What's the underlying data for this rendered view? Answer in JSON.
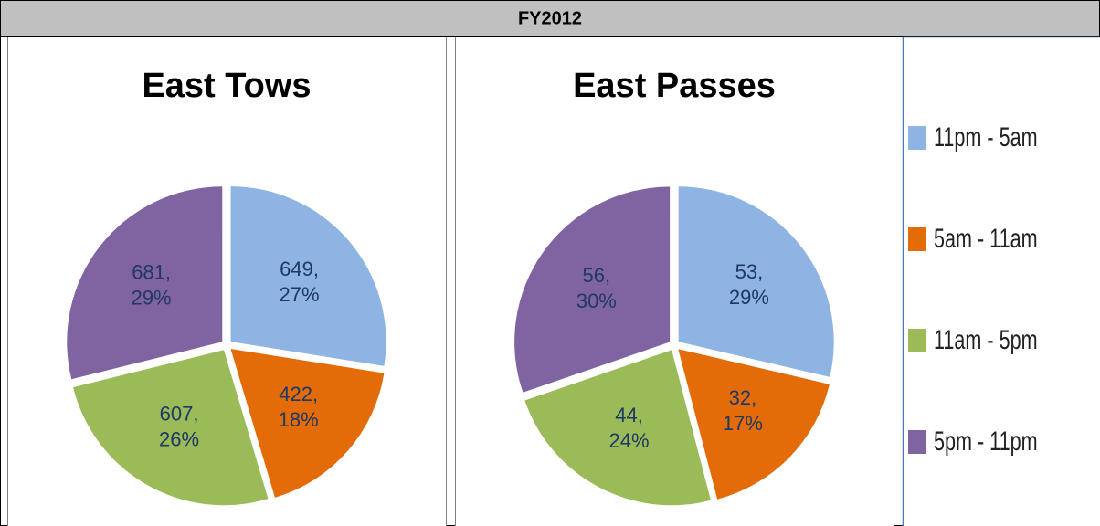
{
  "title": "FY2012",
  "legend": {
    "entries": [
      {
        "name": "11pm - 5am",
        "color": "#8eb4e3"
      },
      {
        "name": "5am - 11am",
        "color": "#e36c09"
      },
      {
        "name": "11am - 5pm",
        "color": "#9bbb59"
      },
      {
        "name": "5pm - 11pm",
        "color": "#8064a2"
      }
    ]
  },
  "chart_data": [
    {
      "type": "pie",
      "title": "East Tows",
      "values": [
        649,
        422,
        607,
        681
      ],
      "value_labels": [
        [
          "649,",
          "27%"
        ],
        [
          "422,",
          "18%"
        ],
        [
          "607,",
          "26%"
        ],
        [
          "681,",
          "29%"
        ]
      ]
    },
    {
      "type": "pie",
      "title": "East Passes",
      "values": [
        53,
        32,
        44,
        56
      ],
      "value_labels": [
        [
          "53,",
          "29%"
        ],
        [
          "32,",
          "17%"
        ],
        [
          "44,",
          "24%"
        ],
        [
          "56,",
          "30%"
        ]
      ]
    }
  ]
}
